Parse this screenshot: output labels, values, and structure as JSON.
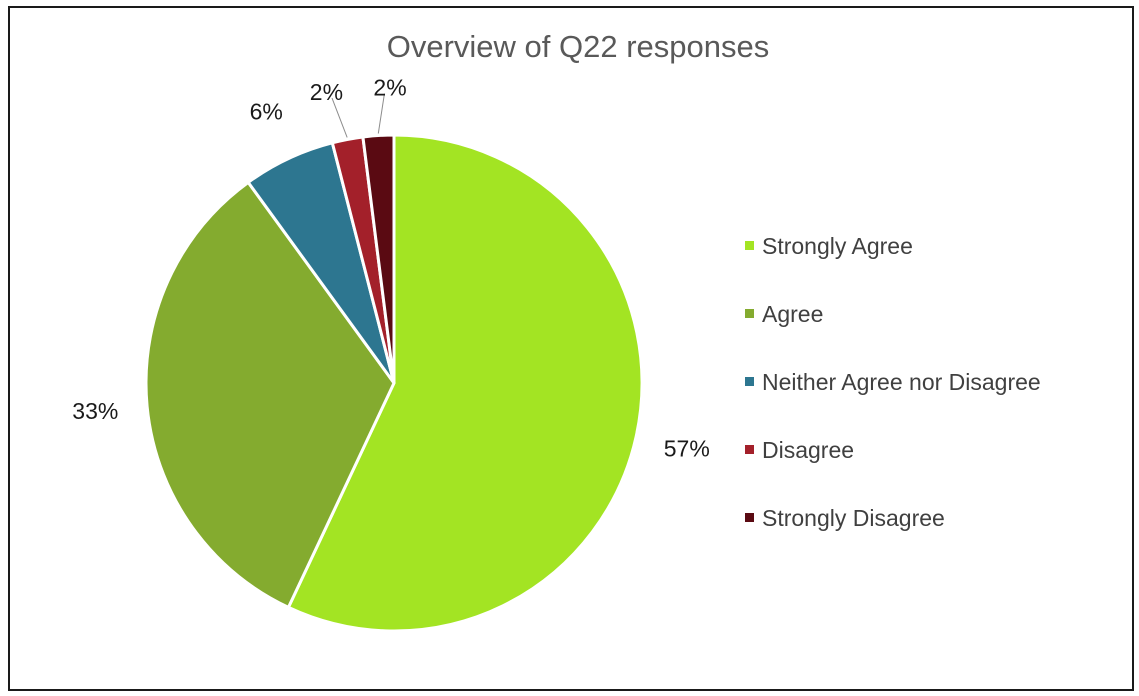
{
  "chart_data": {
    "type": "pie",
    "title": "Overview of Q22 responses",
    "categories": [
      "Strongly Agree",
      "Agree",
      "Neither Agree nor Disagree",
      "Disagree",
      "Strongly Disagree"
    ],
    "values": [
      57,
      33,
      6,
      2,
      2
    ],
    "labels": [
      "57%",
      "33%",
      "6%",
      "2%",
      "2%"
    ],
    "colors": [
      "#a3e423",
      "#84ab2f",
      "#2d7690",
      "#a3202a",
      "#5a0a12"
    ],
    "start_angle_deg": 0,
    "direction": "clockwise",
    "legend_position": "right"
  }
}
